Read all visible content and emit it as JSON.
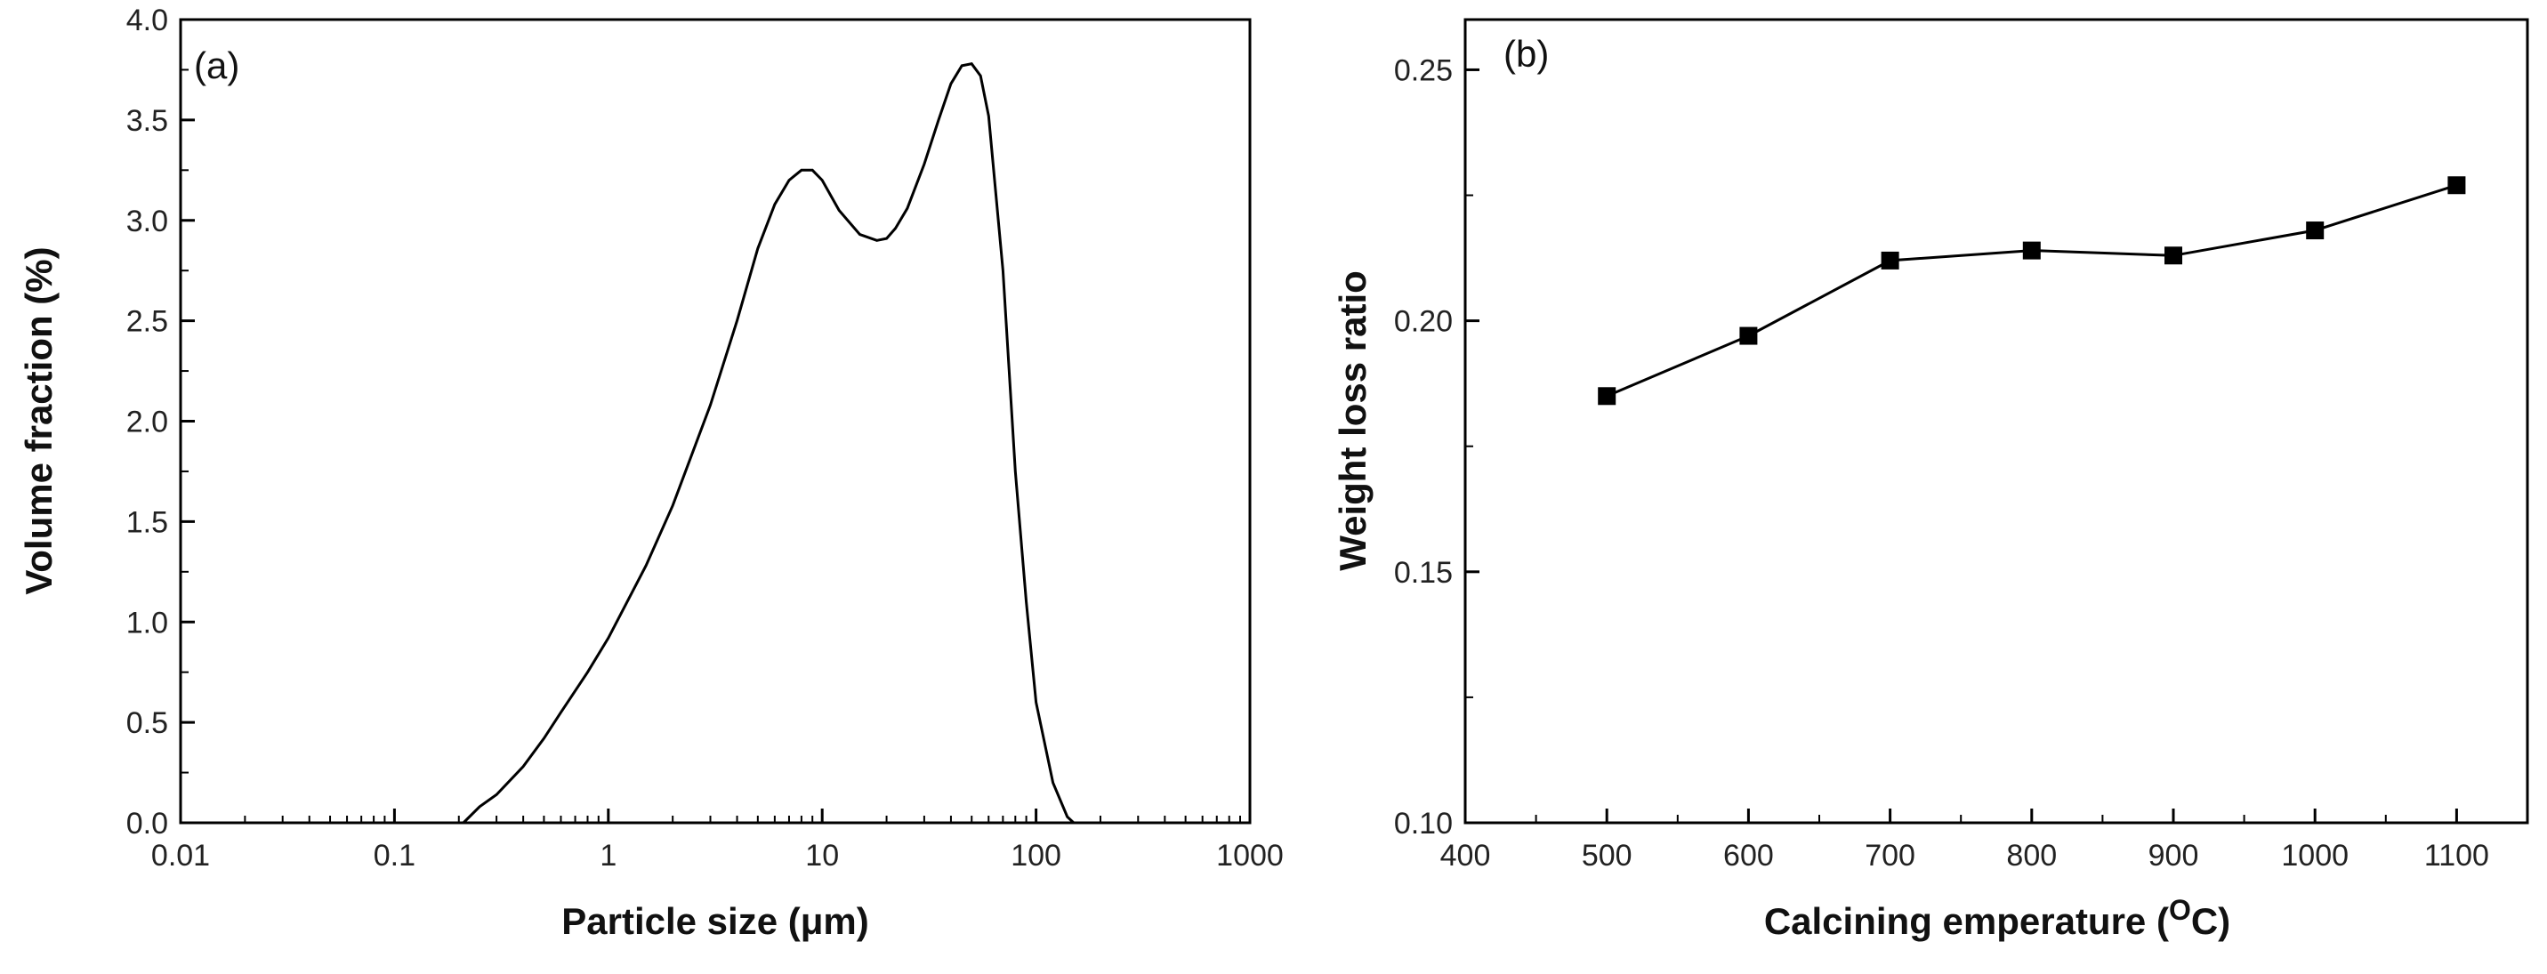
{
  "figure": {
    "chart_data": [
      {
        "type": "line",
        "panel_label": "(a)",
        "xlabel_prefix": "Particle size (",
        "xlabel_unit": "μm",
        "xlabel_suffix": ")",
        "ylabel": "Volume fraction (%)",
        "x_scale": "log",
        "xlim": [
          0.01,
          1000
        ],
        "ylim": [
          0.0,
          4.0
        ],
        "x_ticks": [
          0.01,
          0.1,
          1,
          10,
          100,
          1000
        ],
        "x_tick_labels": [
          "0.01",
          "0.1",
          "1",
          "10",
          "100",
          "1000"
        ],
        "y_ticks": [
          0.0,
          0.5,
          1.0,
          1.5,
          2.0,
          2.5,
          3.0,
          3.5,
          4.0
        ],
        "y_tick_labels": [
          "0.0",
          "0.5",
          "1.0",
          "1.5",
          "2.0",
          "2.5",
          "3.0",
          "3.5",
          "4.0"
        ],
        "series": [
          {
            "name": "Volume fraction",
            "x": [
              0.21,
              0.25,
              0.3,
              0.4,
              0.5,
              0.6,
              0.8,
              1.0,
              1.5,
              2.0,
              3.0,
              4.0,
              5.0,
              6.0,
              7.0,
              8.0,
              9.0,
              10,
              12,
              15,
              18,
              20,
              22,
              25,
              30,
              35,
              40,
              45,
              50,
              55,
              60,
              70,
              80,
              90,
              100,
              120,
              140,
              150
            ],
            "y": [
              0.0,
              0.08,
              0.14,
              0.28,
              0.42,
              0.55,
              0.75,
              0.92,
              1.28,
              1.58,
              2.08,
              2.5,
              2.86,
              3.08,
              3.2,
              3.25,
              3.25,
              3.2,
              3.05,
              2.93,
              2.9,
              2.91,
              2.96,
              3.06,
              3.28,
              3.5,
              3.68,
              3.77,
              3.78,
              3.72,
              3.52,
              2.75,
              1.75,
              1.1,
              0.6,
              0.2,
              0.03,
              0.0
            ]
          }
        ]
      },
      {
        "type": "line",
        "panel_label": "(b)",
        "xlabel_main": "Calcining emperature (",
        "xlabel_sup": "O",
        "xlabel_end": "C)",
        "ylabel": "Weight loss ratio",
        "xlim": [
          400,
          1150
        ],
        "ylim": [
          0.1,
          0.26
        ],
        "x_ticks": [
          400,
          500,
          600,
          700,
          800,
          900,
          1000,
          1100
        ],
        "x_tick_labels": [
          "400",
          "500",
          "600",
          "700",
          "800",
          "900",
          "1000",
          "1100"
        ],
        "y_ticks": [
          0.1,
          0.15,
          0.2,
          0.25
        ],
        "y_tick_labels": [
          "0.10",
          "0.15",
          "0.20",
          "0.25"
        ],
        "series": [
          {
            "name": "Weight loss ratio",
            "marker": "square",
            "x": [
              500,
              600,
              700,
              800,
              900,
              1000,
              1100
            ],
            "y": [
              0.185,
              0.197,
              0.212,
              0.214,
              0.213,
              0.218,
              0.227
            ]
          }
        ]
      }
    ]
  }
}
